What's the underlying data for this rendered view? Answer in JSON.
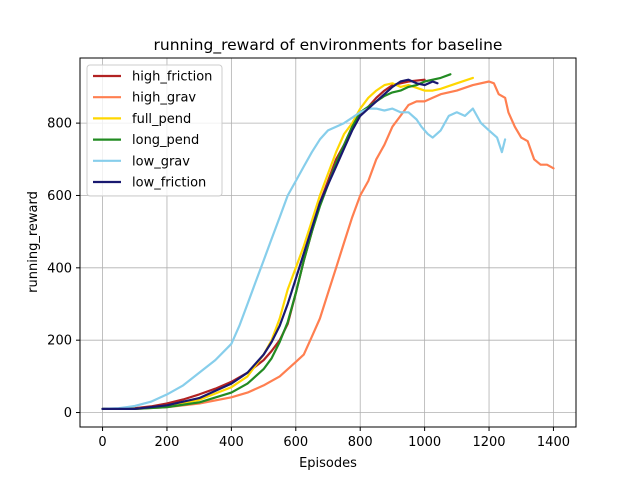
{
  "chart_data": {
    "type": "line",
    "title": "running_reward of environments for baseline",
    "xlabel": "Episodes",
    "ylabel": "running_reward",
    "xlim": [
      -70,
      1470
    ],
    "ylim": [
      -40,
      980
    ],
    "xticks": [
      0,
      200,
      400,
      600,
      800,
      1000,
      1200,
      1400
    ],
    "yticks": [
      0,
      200,
      400,
      600,
      800
    ],
    "grid": true,
    "legend_position": "upper-left",
    "series": [
      {
        "name": "high_friction",
        "color": "#b22222",
        "x": [
          0,
          50,
          100,
          150,
          200,
          250,
          300,
          350,
          400,
          450,
          500,
          525,
          550,
          575,
          600,
          625,
          650,
          675,
          700,
          725,
          750,
          775,
          800,
          825,
          850,
          875,
          900,
          925,
          950,
          1000
        ],
        "y": [
          10,
          10,
          12,
          17,
          25,
          36,
          50,
          66,
          85,
          110,
          145,
          170,
          200,
          245,
          330,
          420,
          500,
          580,
          640,
          700,
          740,
          790,
          820,
          845,
          870,
          890,
          905,
          910,
          915,
          920
        ]
      },
      {
        "name": "high_grav",
        "color": "#ff7f50",
        "x": [
          0,
          100,
          200,
          300,
          400,
          450,
          500,
          550,
          600,
          625,
          650,
          675,
          700,
          725,
          750,
          775,
          800,
          825,
          850,
          875,
          900,
          925,
          950,
          975,
          1000,
          1025,
          1050,
          1100,
          1150,
          1200,
          1215,
          1230,
          1250,
          1260,
          1280,
          1300,
          1320,
          1340,
          1360,
          1380,
          1400
        ],
        "y": [
          10,
          10,
          15,
          25,
          42,
          55,
          75,
          100,
          140,
          160,
          210,
          260,
          330,
          400,
          470,
          540,
          600,
          640,
          700,
          740,
          790,
          820,
          850,
          860,
          860,
          870,
          880,
          890,
          905,
          915,
          910,
          880,
          870,
          830,
          790,
          760,
          750,
          700,
          685,
          685,
          675
        ]
      },
      {
        "name": "full_pend",
        "color": "#ffd700",
        "x": [
          0,
          100,
          200,
          300,
          400,
          450,
          500,
          525,
          550,
          575,
          600,
          625,
          650,
          675,
          700,
          725,
          750,
          775,
          800,
          825,
          850,
          875,
          900,
          925,
          950,
          1000,
          1025,
          1050,
          1100,
          1150
        ],
        "y": [
          10,
          10,
          18,
          35,
          70,
          100,
          160,
          200,
          260,
          340,
          400,
          460,
          530,
          600,
          660,
          720,
          770,
          800,
          840,
          870,
          890,
          905,
          910,
          900,
          905,
          890,
          890,
          895,
          910,
          925
        ]
      },
      {
        "name": "long_pend",
        "color": "#228b22",
        "x": [
          0,
          100,
          200,
          300,
          400,
          450,
          500,
          525,
          550,
          575,
          600,
          625,
          650,
          675,
          700,
          725,
          750,
          775,
          800,
          825,
          850,
          875,
          900,
          925,
          950,
          975,
          1000,
          1025,
          1050,
          1080
        ],
        "y": [
          10,
          10,
          15,
          28,
          55,
          80,
          120,
          150,
          195,
          250,
          330,
          420,
          500,
          570,
          630,
          690,
          740,
          790,
          830,
          845,
          860,
          875,
          885,
          890,
          900,
          905,
          915,
          920,
          925,
          935
        ]
      },
      {
        "name": "low_grav",
        "color": "#87ceeb",
        "x": [
          0,
          50,
          100,
          150,
          200,
          250,
          300,
          350,
          400,
          425,
          450,
          475,
          500,
          525,
          550,
          575,
          600,
          625,
          650,
          675,
          700,
          725,
          750,
          775,
          800,
          825,
          850,
          875,
          900,
          925,
          950,
          975,
          990,
          1000,
          1010,
          1025,
          1050,
          1075,
          1100,
          1125,
          1150,
          1175,
          1200,
          1225,
          1240,
          1250
        ],
        "y": [
          10,
          12,
          18,
          30,
          50,
          75,
          110,
          145,
          190,
          240,
          300,
          360,
          420,
          480,
          540,
          600,
          640,
          680,
          720,
          755,
          780,
          790,
          800,
          815,
          830,
          840,
          840,
          835,
          840,
          830,
          830,
          810,
          790,
          780,
          770,
          760,
          780,
          820,
          830,
          820,
          840,
          800,
          780,
          760,
          720,
          755
        ]
      },
      {
        "name": "low_friction",
        "color": "#191970",
        "x": [
          0,
          100,
          200,
          300,
          400,
          450,
          500,
          525,
          550,
          575,
          600,
          625,
          650,
          675,
          700,
          725,
          750,
          775,
          800,
          825,
          850,
          875,
          900,
          925,
          950,
          975,
          1000,
          1025,
          1040
        ],
        "y": [
          10,
          10,
          20,
          40,
          80,
          110,
          160,
          195,
          240,
          300,
          370,
          440,
          510,
          580,
          630,
          680,
          730,
          780,
          820,
          840,
          860,
          880,
          900,
          915,
          920,
          910,
          905,
          915,
          910
        ]
      }
    ]
  }
}
